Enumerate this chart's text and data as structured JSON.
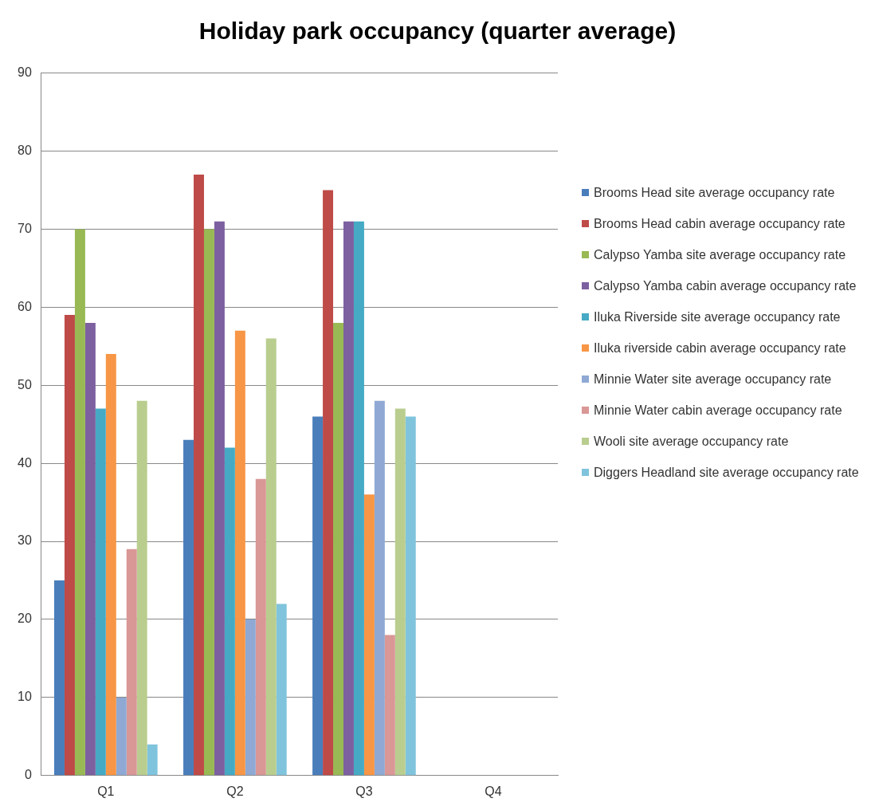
{
  "chart_data": {
    "type": "bar",
    "title": "Holiday park occupancy (quarter average)",
    "categories": [
      "Q1",
      "Q2",
      "Q3",
      "Q4"
    ],
    "series": [
      {
        "name": "Brooms Head site average occupancy rate",
        "color": "#4a7ebb",
        "values": [
          25,
          43,
          46,
          null
        ]
      },
      {
        "name": "Brooms Head cabin average occupancy rate",
        "color": "#be4b48",
        "values": [
          59,
          77,
          75,
          null
        ]
      },
      {
        "name": "Calypso Yamba site average occupancy rate",
        "color": "#98b954",
        "values": [
          70,
          70,
          58,
          null
        ]
      },
      {
        "name": "Calypso Yamba cabin average occupancy rate",
        "color": "#7d60a0",
        "values": [
          58,
          71,
          71,
          null
        ]
      },
      {
        "name": "Iluka Riverside site average occupancy rate",
        "color": "#46aac5",
        "values": [
          47,
          42,
          71,
          null
        ]
      },
      {
        "name": "Iluka riverside cabin average occupancy rate",
        "color": "#f79646",
        "values": [
          54,
          57,
          36,
          null
        ]
      },
      {
        "name": "Minnie Water site average occupancy rate",
        "color": "#8fa9d4",
        "values": [
          10,
          20,
          48,
          null
        ]
      },
      {
        "name": "Minnie Water cabin average occupancy rate",
        "color": "#d99795",
        "values": [
          29,
          38,
          18,
          null
        ]
      },
      {
        "name": "Wooli site average occupancy rate",
        "color": "#b9cd8f",
        "values": [
          48,
          56,
          47,
          null
        ]
      },
      {
        "name": "Diggers Headland site average occupancy rate",
        "color": "#7fc4dc",
        "values": [
          4,
          22,
          46,
          null
        ]
      }
    ],
    "ylim": [
      0,
      90
    ],
    "yticks": [
      0,
      10,
      20,
      30,
      40,
      50,
      60,
      70,
      80,
      90
    ],
    "grid": "y",
    "legend": "right"
  }
}
